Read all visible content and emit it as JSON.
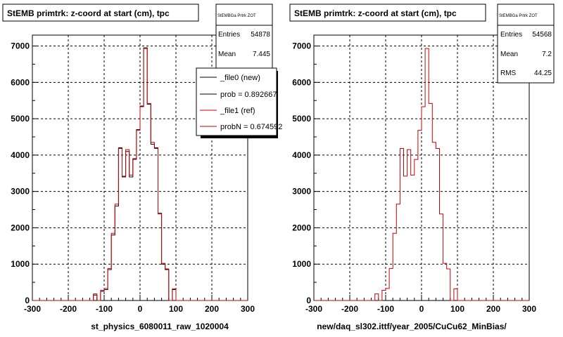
{
  "colors": {
    "new": "#000000",
    "ref": "#cc0000",
    "background": "#ffffff"
  },
  "chart_data": [
    {
      "type": "step-histogram",
      "title": "StEMB primtrk: z-coord at start (cm), tpc",
      "xlabel": "st_physics_6080011_raw_1020004",
      "xlim": [
        -300,
        300
      ],
      "ylim": [
        0,
        7300
      ],
      "xticks": [
        -300,
        -200,
        -100,
        0,
        100,
        200,
        300
      ],
      "yticks": [
        0,
        1000,
        2000,
        3000,
        4000,
        5000,
        6000,
        7000
      ],
      "grid": true,
      "stats": {
        "name": "StEMBGa Prtrk ZOT",
        "rows": [
          {
            "label": "Entries",
            "value": "54878"
          },
          {
            "label": "Mean",
            "value": "7.445"
          }
        ]
      },
      "legend": {
        "placement": "top-right",
        "entries": [
          {
            "label": "_file0 (new)",
            "color": "#000000"
          },
          {
            "label": "prob = 0.892667",
            "color": "#000000"
          },
          {
            "label": "_file1 (ref)",
            "color": "#cc0000"
          },
          {
            "label": "probN = 0.674592",
            "color": "#cc0000"
          }
        ]
      },
      "bin_edges": [
        -300,
        -290,
        -280,
        -270,
        -260,
        -250,
        -240,
        -230,
        -220,
        -210,
        -200,
        -190,
        -180,
        -170,
        -160,
        -150,
        -140,
        -130,
        -120,
        -110,
        -100,
        -90,
        -80,
        -70,
        -60,
        -50,
        -40,
        -30,
        -20,
        -10,
        0,
        10,
        20,
        30,
        40,
        50,
        60,
        70,
        80,
        90,
        100,
        110,
        120,
        130,
        140,
        150,
        160,
        170,
        180,
        190,
        200,
        210,
        220,
        230,
        240,
        250,
        260,
        270,
        280,
        290,
        300
      ],
      "series": [
        {
          "name": "_file0 (new)",
          "color": "#000000",
          "values": [
            0,
            0,
            0,
            0,
            0,
            0,
            0,
            0,
            0,
            0,
            0,
            0,
            0,
            0,
            0,
            0,
            0,
            150,
            0,
            250,
            300,
            850,
            1800,
            2600,
            4200,
            3400,
            4100,
            3400,
            3900,
            4700,
            5350,
            6950,
            5400,
            4300,
            4200,
            2400,
            1000,
            850,
            0,
            300,
            0,
            0,
            0,
            0,
            0,
            0,
            0,
            0,
            0,
            0,
            0,
            0,
            0,
            0,
            0,
            0,
            0,
            0,
            0,
            0
          ]
        },
        {
          "name": "_file1 (ref)",
          "color": "#cc0000",
          "values": [
            0,
            0,
            0,
            0,
            0,
            0,
            0,
            0,
            0,
            0,
            0,
            0,
            0,
            0,
            0,
            0,
            0,
            180,
            0,
            280,
            330,
            880,
            1850,
            2650,
            4180,
            3420,
            4150,
            3450,
            3880,
            4680,
            5330,
            6930,
            5420,
            4350,
            4180,
            2380,
            1020,
            870,
            0,
            320,
            0,
            0,
            0,
            0,
            0,
            0,
            0,
            0,
            0,
            0,
            0,
            0,
            0,
            0,
            0,
            0,
            0,
            0,
            0,
            0
          ]
        }
      ]
    },
    {
      "type": "step-histogram",
      "title": "StEMB primtrk: z-coord at start (cm), tpc",
      "xlabel": "new/daq_sl302.ittf/year_2005/CuCu62_MinBias/",
      "xlim": [
        -300,
        300
      ],
      "ylim": [
        0,
        7300
      ],
      "xticks": [
        -300,
        -200,
        -100,
        0,
        100,
        200,
        300
      ],
      "yticks": [
        0,
        1000,
        2000,
        3000,
        4000,
        5000,
        6000,
        7000
      ],
      "grid": true,
      "stats": {
        "name": "StEMBGa Prtrk ZOT",
        "rows": [
          {
            "label": "Entries",
            "value": "54568"
          },
          {
            "label": "Mean",
            "value": "7.2"
          },
          {
            "label": "RMS",
            "value": "44.25"
          }
        ]
      },
      "bin_edges": [
        -300,
        -290,
        -280,
        -270,
        -260,
        -250,
        -240,
        -230,
        -220,
        -210,
        -200,
        -190,
        -180,
        -170,
        -160,
        -150,
        -140,
        -130,
        -120,
        -110,
        -100,
        -90,
        -80,
        -70,
        -60,
        -50,
        -40,
        -30,
        -20,
        -10,
        0,
        10,
        20,
        30,
        40,
        50,
        60,
        70,
        80,
        90,
        100,
        110,
        120,
        130,
        140,
        150,
        160,
        170,
        180,
        190,
        200,
        210,
        220,
        230,
        240,
        250,
        260,
        270,
        280,
        290,
        300
      ],
      "series": [
        {
          "name": "_file1 (ref)",
          "color": "#cc0000",
          "values": [
            0,
            0,
            0,
            0,
            0,
            0,
            0,
            0,
            0,
            0,
            0,
            0,
            0,
            0,
            0,
            0,
            0,
            180,
            0,
            280,
            330,
            880,
            1850,
            2650,
            4180,
            3420,
            4150,
            3450,
            3880,
            4680,
            5330,
            6930,
            5420,
            4350,
            4180,
            2380,
            1020,
            870,
            0,
            320,
            0,
            0,
            0,
            0,
            0,
            0,
            0,
            0,
            0,
            0,
            0,
            0,
            0,
            0,
            0,
            0,
            0,
            0,
            0,
            0
          ]
        }
      ]
    }
  ]
}
